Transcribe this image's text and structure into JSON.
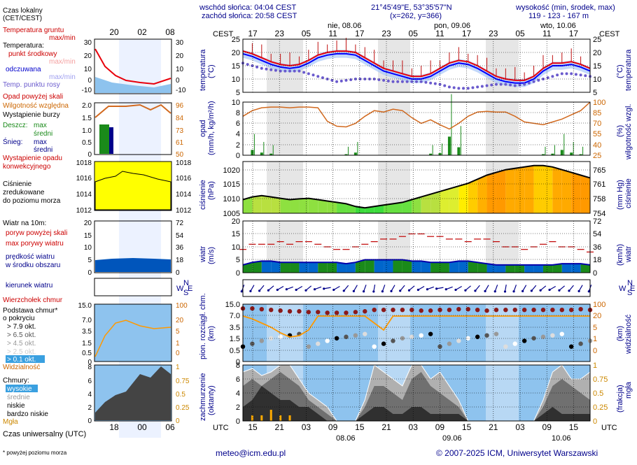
{
  "header": {
    "sunrise": "wschód słońca: 04:04 CEST",
    "sunset": "zachód słońca: 20:58 CEST",
    "coords": "21°45'49\"E, 53°35'57\"N",
    "grid": "(x=262, y=366)",
    "elev_title": "wysokość (min, środek, max)",
    "elev_values": "119 - 123 - 167 m"
  },
  "legend": {
    "local_time": "Czas lokalny",
    "local_time_zone": "(CET/CEST)",
    "ground_temp": "Temperatura gruntu",
    "ground_temp_mm": "max/min",
    "temperature": "Temperatura:",
    "mid_point": "punkt środkowy",
    "max_min_faded": "max/min",
    "perceived": "odczuwana",
    "max_min_faded2": "max/min",
    "dew_point": "Temp. punktu rosy",
    "precip_above": "Opad powyżej skali",
    "humidity": "Wilgotność względna",
    "storm": "Wystąpienie burzy",
    "rain": "Deszcz:",
    "rain_max": "max",
    "rain_avg": "średni",
    "snow": "Śnieg:",
    "snow_max": "max",
    "snow_avg": "średni",
    "precip_occurrence_1": "Wystąpienie opadu",
    "precip_occurrence_2": "konwekcyjnego",
    "pressure_1": "Ciśnienie",
    "pressure_2": "zredukowane",
    "pressure_3": "do poziomu morza",
    "wind_at": "Wiatr na 10m:",
    "gust_above": "poryw powyżej skali",
    "max_gust": "max porywy wiatru",
    "wind_speed_1": "prędkość wiatru",
    "wind_speed_2": "w środku obszaru",
    "wind_dir": "kierunek wiatru",
    "cloud_top": "Wierzchołek chmur",
    "cloud_base_1": "Podstawa chmur*",
    "cloud_base_2": "o pokryciu",
    "okt": [
      "> 7.9 okt.",
      "> 6.5 okt.",
      "> 4.5 okt.",
      "> 2.5 okt.",
      "> 0.1 okt."
    ],
    "visibility": "Widzialność",
    "clouds": "Chmury:",
    "high": "wysokie",
    "mid": "średnie",
    "low": "niskie",
    "very_low": "bardzo niskie",
    "fog": "Mgła",
    "utc": "Czas uniwersalny (UTC)",
    "footnote": "* powyżej poziomu morza"
  },
  "left_axis": {
    "top_hours": [
      "20",
      "02",
      "08"
    ],
    "bottom_hours": [
      "18",
      "00",
      "06"
    ],
    "temp_ticks": [
      "30",
      "20",
      "10",
      "0",
      "-10"
    ],
    "precip_ticks": [
      "2.0",
      "1.5",
      "1.0",
      "0.5",
      "0"
    ],
    "hum_ticks": [
      "96",
      "84",
      "73",
      "61",
      "50"
    ],
    "press_ticks": [
      "1018",
      "1016",
      "1014",
      "1012"
    ],
    "wind_ticks": [
      "20",
      "15",
      "10",
      "5",
      "0"
    ],
    "wind_kmh_ticks": [
      "72",
      "54",
      "36",
      "18",
      "0"
    ],
    "cloud_ticks": [
      "15.0",
      "7.0",
      "3.5",
      "1.5",
      "0.5",
      "0"
    ],
    "vis_ticks": [
      "100",
      "20",
      "5",
      "1",
      "0"
    ],
    "frac_ticks": [
      "8",
      "6",
      "4",
      "2",
      "0"
    ],
    "fog_ticks": [
      "1",
      "0.75",
      "0.5",
      "0.25",
      "0"
    ]
  },
  "main": {
    "cest_label": "CEST",
    "utc_label": "UTC",
    "top_hours": [
      "17",
      "23",
      "05",
      "11",
      "17",
      "23",
      "05",
      "11",
      "17",
      "23",
      "05",
      "11",
      "17"
    ],
    "bottom_hours": [
      "15",
      "21",
      "03",
      "09",
      "15",
      "21",
      "03",
      "09",
      "15",
      "21",
      "03",
      "09",
      "15"
    ],
    "top_dates": [
      "nie, 08.06",
      "pon, 09.06",
      "wto, 10.06"
    ],
    "bottom_dates": [
      "08.06",
      "09.06",
      "10.06"
    ],
    "temp_title_l": "temperatura",
    "temp_unit": "(°C)",
    "temp_ticks": [
      "25",
      "20",
      "15",
      "10",
      "5"
    ],
    "precip_title_l": "opad",
    "precip_unit_l": "(mm/h, kg/m²/h)",
    "precip_ticks": [
      "10",
      "8",
      "6",
      "4",
      "2",
      "0"
    ],
    "hum_title_r": "wilgotność wzgl.",
    "hum_unit": "(%)",
    "hum_ticks": [
      "100",
      "85",
      "70",
      "55",
      "40",
      "25"
    ],
    "press_title_l": "ciśnienie",
    "press_unit_l": "(hPa)",
    "press_ticks": [
      "1020",
      "1015",
      "1010",
      "1005"
    ],
    "press_title_r": "ciśnienie",
    "press_unit_r": "(mm Hg)",
    "press_mm_ticks": [
      "765",
      "761",
      "758",
      "754"
    ],
    "wind_title": "wiatr",
    "wind_unit_l": "(m/s)",
    "wind_unit_r": "(km/h)",
    "wind_ticks": [
      "20",
      "15",
      "10",
      "5",
      "0"
    ],
    "wind_kmh_ticks": [
      "72",
      "54",
      "36",
      "18",
      "0"
    ],
    "compass": [
      "N",
      "W",
      "S",
      "E"
    ],
    "cloud_title_l": "pion. rozciągł. chm.",
    "cloud_unit_l": "(km)",
    "cloud_ticks": [
      "15.0",
      "7.0",
      "3.5",
      "1.5",
      "0.5",
      "0"
    ],
    "vis_title_r": "widzialność",
    "vis_unit_r": "(km)",
    "vis_ticks": [
      "100",
      "20",
      "5",
      "1",
      "0"
    ],
    "cover_title_l": "zachmurzenie",
    "cover_unit_l": "(oktanty)",
    "cover_ticks": [
      "8",
      "6",
      "4",
      "2",
      "0"
    ],
    "fog_title_r": "mgła",
    "fog_unit_r": "(frakcja)",
    "fog_ticks": [
      "1",
      "0.75",
      "0.5",
      "0.25",
      "0"
    ]
  },
  "footer": {
    "email": "meteo@icm.edu.pl",
    "copyright": "© 2007-2025 ICM, Uniwersytet Warszawski"
  },
  "colors": {
    "temp": "#e8000b",
    "perceived": "#0000ff",
    "dew": "#6a5acd",
    "humidity": "#d2691e",
    "rain": "#1a8a1a",
    "pressure_line": "#000000",
    "wind_area": "#0066cc",
    "gust": "#c00000",
    "night_band": "#e6e6e6",
    "label_blue": "#00008b",
    "label_red": "#cc0000",
    "label_orange": "#cc6600"
  },
  "chart_data": [
    {
      "type": "line",
      "title": "temperatura",
      "ylabel": "(°C)",
      "ylim": [
        5,
        25
      ],
      "x": [
        "17",
        "19",
        "21",
        "23",
        "01",
        "03",
        "05",
        "07",
        "09",
        "11",
        "13",
        "15",
        "17",
        "19",
        "21",
        "23",
        "01",
        "03",
        "05",
        "07",
        "09",
        "11",
        "13",
        "15",
        "17",
        "19",
        "21",
        "23",
        "01",
        "03",
        "05",
        "07",
        "09",
        "11",
        "13",
        "15",
        "17",
        "19"
      ],
      "series": [
        {
          "name": "punkt środkowy",
          "values": [
            20.5,
            19.5,
            18,
            16.5,
            15.5,
            15,
            15.5,
            17,
            19,
            20,
            20.5,
            20.5,
            20,
            18,
            16,
            14,
            13,
            12,
            11,
            11,
            12,
            14,
            16,
            17,
            16.5,
            15,
            13,
            11,
            10,
            9.5,
            9.5,
            11,
            14,
            16,
            16,
            16.5,
            15.5,
            14
          ]
        },
        {
          "name": "odczuwana",
          "values": [
            19.5,
            18.5,
            17,
            15.5,
            14.5,
            14,
            14.5,
            16,
            18,
            19,
            19.5,
            19.5,
            19,
            17,
            15,
            13,
            12,
            11,
            10,
            10,
            11,
            13,
            15,
            16,
            15.5,
            14,
            12,
            10,
            9,
            8.5,
            8.5,
            10,
            13,
            15,
            15,
            15.5,
            14.5,
            13
          ]
        },
        {
          "name": "Temp. punktu rosy",
          "values": [
            16,
            15,
            14,
            13.5,
            13,
            13,
            13,
            12,
            11,
            10,
            9,
            9.5,
            10,
            10,
            10,
            9.5,
            9,
            9,
            9,
            9,
            8.5,
            8,
            7,
            6.5,
            6.5,
            7,
            7.5,
            8,
            8,
            7.5,
            8,
            9,
            10,
            11,
            12,
            12,
            11.5,
            11
          ]
        }
      ],
      "grid": true
    },
    {
      "type": "bar",
      "title": "opad",
      "ylabel": "(mm/h, kg/m²/h)",
      "ylim": [
        0,
        10
      ],
      "values": [
        0,
        1.0,
        0.5,
        0.3,
        0,
        0,
        0,
        0,
        0,
        0,
        0,
        0.2,
        0.5,
        0,
        0,
        0,
        0,
        0,
        0,
        0,
        0.3,
        0.4,
        3.5,
        1.5,
        0,
        0,
        0,
        0,
        0,
        0,
        0,
        0,
        0.2,
        0.3,
        1.0,
        0.5,
        0.2,
        0
      ],
      "series": [
        {
          "name": "wilgotność względna",
          "axis": "right",
          "ylim": [
            25,
            100
          ],
          "values": [
            80,
            88,
            92,
            93,
            93,
            92,
            93,
            93,
            92,
            73,
            66,
            65,
            70,
            80,
            88,
            86,
            90,
            88,
            78,
            70,
            75,
            68,
            62,
            70,
            80,
            86,
            87,
            86,
            86,
            80,
            72,
            70,
            68,
            72,
            76,
            82,
            88,
            100
          ]
        }
      ],
      "grid": true
    },
    {
      "type": "area",
      "title": "ciśnienie",
      "ylabel": "(hPa)",
      "ylim": [
        1005,
        1023
      ],
      "values": [
        1009,
        1010,
        1010.5,
        1010,
        1009.5,
        1009,
        1009.3,
        1009.5,
        1009,
        1008.5,
        1008,
        1007.5,
        1006.5,
        1006,
        1006.5,
        1007,
        1007.5,
        1008,
        1009,
        1010,
        1011,
        1012,
        1013,
        1014,
        1015,
        1016.5,
        1018,
        1019,
        1020,
        1020.5,
        1021,
        1021.5,
        1021.5,
        1021,
        1020,
        1019,
        1018,
        1017
      ]
    },
    {
      "type": "area",
      "title": "wiatr",
      "ylabel": "(m/s)",
      "ylim": [
        0,
        20
      ],
      "series": [
        {
          "name": "prędkość wiatru",
          "values": [
            3,
            4,
            4.5,
            4.5,
            4,
            4,
            4,
            4,
            4,
            4,
            4,
            3.5,
            4,
            5,
            5,
            5,
            5,
            5,
            4.5,
            4.5,
            4,
            4,
            4,
            4.5,
            4.5,
            4,
            3.5,
            3,
            3,
            3,
            3,
            3,
            3,
            3,
            3.5,
            3.5,
            3.5,
            3
          ]
        },
        {
          "name": "max porywy wiatru",
          "values": [
            9,
            11,
            11,
            11,
            12,
            11,
            12,
            12,
            11,
            10,
            9,
            9,
            10,
            11,
            12,
            13,
            13,
            14,
            15,
            15,
            14,
            14,
            13,
            13,
            12,
            13,
            13,
            12,
            10,
            10,
            9,
            10,
            11,
            12,
            10,
            10,
            9,
            8
          ]
        }
      ],
      "grid": true
    },
    {
      "type": "scatter",
      "title": "pion. rozciągł. chm.",
      "ylabel": "(km)",
      "series": [
        {
          "name": "Wierzchołek chmur",
          "values": [
            12,
            12,
            11.5,
            11,
            10.5,
            10,
            10,
            9.5,
            9.5,
            9,
            9,
            9,
            9.5,
            10,
            11,
            11,
            11,
            11,
            11,
            10.5,
            10.5,
            11,
            11,
            11.5,
            11.5,
            11,
            10.5,
            11,
            11,
            11,
            11,
            11,
            11,
            11,
            11,
            11,
            11.5,
            11
          ]
        },
        {
          "name": "Widzialność",
          "values": [
            20,
            18,
            15,
            12,
            8,
            5,
            6,
            10,
            20,
            30,
            30,
            20,
            20,
            20,
            15,
            10,
            20,
            20,
            20,
            20,
            20,
            20,
            20,
            20,
            20,
            20,
            20,
            20,
            20,
            20,
            20,
            20,
            20,
            20,
            20,
            20,
            20,
            20
          ]
        }
      ],
      "grid": true
    },
    {
      "type": "area",
      "title": "zachmurzenie",
      "ylabel": "(oktanty)",
      "ylim": [
        0,
        8
      ],
      "series": [
        {
          "name": "wysokie",
          "values": [
            7,
            7.5,
            6.5,
            7,
            8,
            8,
            6,
            4,
            3,
            2,
            0,
            0,
            0,
            3,
            8,
            7,
            6,
            5,
            8,
            8,
            6,
            7,
            5,
            3,
            0,
            0,
            0,
            0,
            0,
            0,
            0,
            0,
            3,
            7,
            8,
            6,
            6,
            7
          ]
        },
        {
          "name": "średnie",
          "values": [
            5,
            6,
            5,
            6,
            7,
            6,
            5,
            3,
            2,
            1,
            0,
            0,
            0,
            2,
            5,
            5,
            4,
            3,
            6,
            7,
            5,
            4,
            3,
            2,
            0,
            0,
            0,
            0,
            0,
            0,
            0,
            0,
            2,
            5,
            6,
            5,
            4,
            3
          ]
        },
        {
          "name": "niskie",
          "values": [
            2,
            3,
            5,
            4,
            3,
            3,
            2,
            2,
            1,
            0,
            0,
            0,
            0,
            1,
            2,
            2,
            1,
            1,
            2,
            2,
            1,
            1,
            1,
            1,
            0,
            0,
            0,
            0,
            0,
            0,
            0,
            0,
            1,
            2,
            1,
            1,
            1,
            1
          ]
        },
        {
          "name": "Mgła",
          "values": [
            0,
            0.1,
            0.1,
            0.2,
            0.1,
            0.1,
            0,
            0,
            0,
            0,
            0,
            0,
            0,
            0,
            0,
            0,
            0,
            0,
            0,
            0,
            0,
            0,
            0,
            0,
            0,
            0,
            0,
            0,
            0,
            0,
            0,
            0,
            0,
            0,
            0,
            0,
            0,
            0
          ]
        }
      ],
      "grid": true
    }
  ]
}
